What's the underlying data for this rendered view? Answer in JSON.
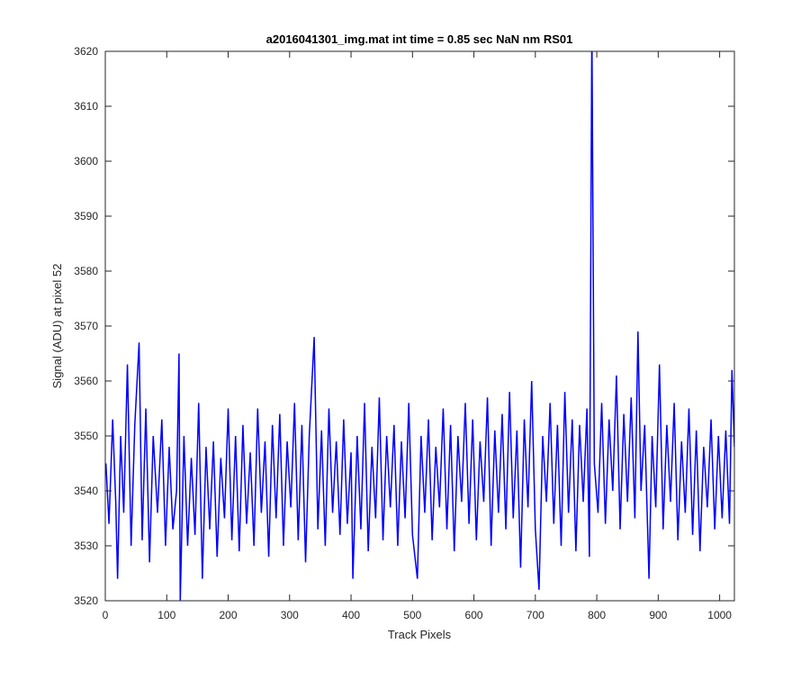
{
  "chart_data": {
    "type": "line",
    "title": "a2016041301_img.mat int time = 0.85 sec  NaN nm RS01",
    "x_label": "Track Pixels",
    "y_label": "Signal (ADU) at pixel 52",
    "xlim": [
      0,
      1024
    ],
    "ylim": [
      3520,
      3620
    ],
    "xticks": [
      0,
      100,
      200,
      300,
      400,
      500,
      600,
      700,
      800,
      900,
      1000
    ],
    "yticks": [
      3520,
      3530,
      3540,
      3550,
      3560,
      3570,
      3580,
      3590,
      3600,
      3610,
      3620
    ],
    "series": [
      {
        "color": "#0000ff",
        "x": [
          1,
          6,
          12,
          17,
          20,
          25,
          30,
          36,
          42,
          48,
          55,
          60,
          66,
          72,
          78,
          85,
          92,
          98,
          104,
          110,
          116,
          120,
          122,
          128,
          134,
          140,
          146,
          152,
          158,
          164,
          170,
          176,
          182,
          188,
          194,
          200,
          206,
          212,
          218,
          224,
          230,
          236,
          242,
          248,
          254,
          260,
          266,
          272,
          278,
          284,
          290,
          296,
          302,
          308,
          314,
          320,
          326,
          332,
          340,
          346,
          352,
          358,
          364,
          370,
          376,
          382,
          388,
          394,
          400,
          403,
          410,
          416,
          422,
          428,
          434,
          440,
          446,
          452,
          458,
          464,
          470,
          476,
          482,
          488,
          494,
          500,
          508,
          514,
          520,
          526,
          532,
          538,
          544,
          550,
          556,
          562,
          568,
          574,
          580,
          586,
          592,
          598,
          604,
          610,
          616,
          622,
          628,
          634,
          640,
          646,
          652,
          658,
          664,
          670,
          676,
          682,
          688,
          694,
          700,
          706,
          712,
          718,
          724,
          730,
          736,
          742,
          748,
          754,
          760,
          766,
          772,
          778,
          784,
          788,
          792,
          796,
          802,
          808,
          814,
          820,
          826,
          832,
          838,
          844,
          850,
          856,
          862,
          867,
          872,
          878,
          885,
          890,
          896,
          902,
          908,
          914,
          920,
          926,
          932,
          938,
          944,
          950,
          956,
          962,
          968,
          974,
          980,
          986,
          992,
          998,
          1004,
          1010,
          1016,
          1020,
          1024
        ],
        "values": [
          3545,
          3534,
          3553,
          3538,
          3524,
          3550,
          3536,
          3563,
          3530,
          3552,
          3567,
          3531,
          3555,
          3527,
          3550,
          3536,
          3553,
          3530,
          3548,
          3533,
          3540,
          3565,
          3520,
          3550,
          3530,
          3546,
          3532,
          3556,
          3524,
          3548,
          3533,
          3549,
          3528,
          3546,
          3535,
          3555,
          3531,
          3550,
          3529,
          3552,
          3534,
          3547,
          3530,
          3555,
          3536,
          3549,
          3528,
          3552,
          3535,
          3554,
          3530,
          3549,
          3537,
          3556,
          3531,
          3552,
          3527,
          3550,
          3568,
          3533,
          3551,
          3530,
          3555,
          3536,
          3549,
          3532,
          3553,
          3534,
          3547,
          3524,
          3550,
          3533,
          3556,
          3529,
          3548,
          3535,
          3557,
          3531,
          3550,
          3537,
          3552,
          3530,
          3549,
          3535,
          3556,
          3532,
          3524,
          3550,
          3536,
          3553,
          3531,
          3548,
          3537,
          3555,
          3533,
          3552,
          3529,
          3550,
          3538,
          3556,
          3534,
          3553,
          3531,
          3549,
          3538,
          3557,
          3530,
          3551,
          3536,
          3554,
          3533,
          3558,
          3535,
          3551,
          3526,
          3553,
          3537,
          3560,
          3533,
          3522,
          3550,
          3538,
          3556,
          3534,
          3552,
          3530,
          3558,
          3536,
          3553,
          3529,
          3552,
          3538,
          3555,
          3528,
          3625,
          3545,
          3536,
          3556,
          3534,
          3553,
          3540,
          3561,
          3533,
          3554,
          3538,
          3557,
          3535,
          3569,
          3540,
          3552,
          3524,
          3550,
          3537,
          3563,
          3533,
          3552,
          3538,
          3556,
          3531,
          3549,
          3536,
          3555,
          3532,
          3551,
          3529,
          3548,
          3537,
          3553,
          3533,
          3550,
          3535,
          3551,
          3534,
          3562,
          3548
        ]
      }
    ]
  }
}
